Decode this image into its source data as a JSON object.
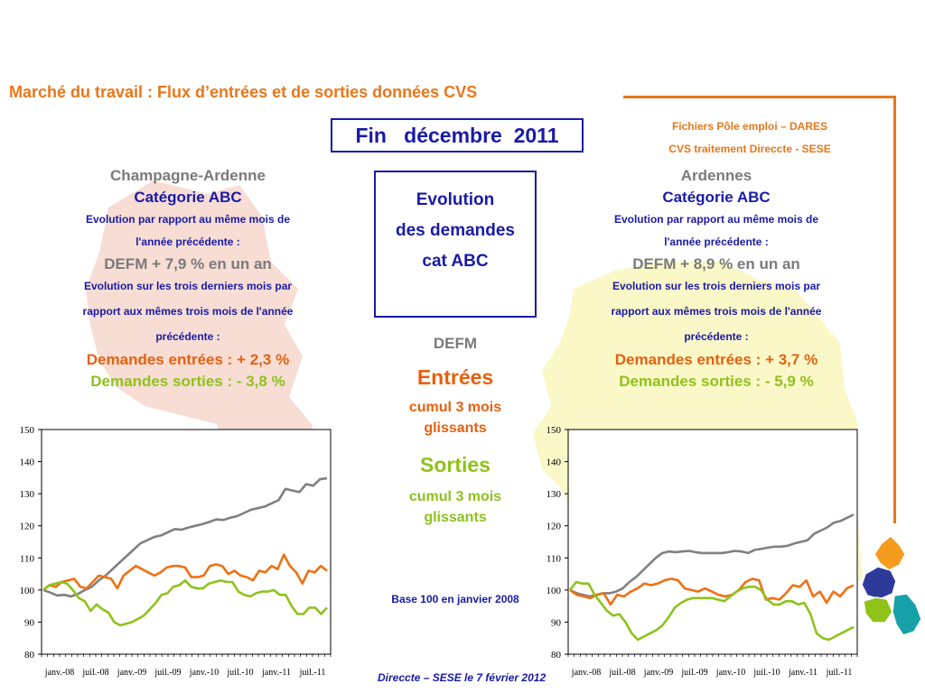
{
  "title": "Marché du travail : Flux d’entrées et de sorties données CVS",
  "period": "Fin   décembre  2011",
  "source": {
    "line1": "Fichiers Pôle emploi – DARES",
    "line2": "CVS traitement Direccte - SESE"
  },
  "center": {
    "evolution_line1": "Evolution",
    "evolution_line2": "des  demandes",
    "evolution_line3": "cat ABC",
    "defm": "DEFM",
    "entrees": "Entrées",
    "entrees_sub1": "cumul 3 mois",
    "entrees_sub2": "glissants",
    "sorties": "Sorties",
    "sorties_sub1": "cumul 3 mois",
    "sorties_sub2": "glissants",
    "base": "Base 100 en janvier 2008"
  },
  "left": {
    "region": "Champagne-Ardenne",
    "category": "Catégorie ABC",
    "evo_same_month_1": "Evolution par rapport au même mois de",
    "evo_same_month_2": "l'année précédente :",
    "defm_line": "DEFM +  7,9 % en un an",
    "evo_three_1": "Evolution sur les trois derniers mois par",
    "evo_three_2": "rapport aux mêmes trois mois de l'année",
    "evo_three_3": "précédente :",
    "entrees_line": "Demandes entrées : +  2,3 %",
    "sorties_line": "Demandes sorties : -  3,8 %"
  },
  "right": {
    "region": "Ardennes",
    "category": "Catégorie ABC",
    "evo_same_month_1": "Evolution par rapport au même mois de",
    "evo_same_month_2": "l'année précédente :",
    "defm_line": "DEFM +  8,9 % en un an",
    "evo_three_1": "Evolution sur les trois derniers mois par",
    "evo_three_2": "rapport aux mêmes trois mois de l'année",
    "evo_three_3": "précédente :",
    "entrees_line": "Demandes entrées : +  3,7 %",
    "sorties_line": "Demandes sorties : -  5,9 %"
  },
  "footer": "Direccte – SESE le 7 février 2012",
  "colors": {
    "accent_orange": "#e8771a",
    "blue": "#1a1aa8",
    "grey_series": "#808080",
    "orange_series": "#f07014",
    "green_series": "#8ec21a",
    "map_left": "#f7ddd4",
    "map_right": "#fbf8c8"
  },
  "chart_data": [
    {
      "type": "line",
      "ylim": [
        80,
        150
      ],
      "yticks": [
        80,
        90,
        100,
        110,
        120,
        130,
        140,
        150
      ],
      "x_tick_labels": [
        "janv.-08",
        "juil.-08",
        "janv.-09",
        "juil.-09",
        "janv.-10",
        "juil.-10",
        "janv.-11",
        "juil.-11"
      ],
      "series": [
        {
          "color": "#808080",
          "values": [
            100,
            99.2,
            98.3,
            98.5,
            98,
            98.8,
            100,
            101,
            103,
            104.5,
            106.5,
            108.5,
            110.5,
            112.5,
            114.5,
            115.5,
            116.5,
            117,
            118,
            119,
            118.8,
            119.5,
            120,
            120.5,
            121.2,
            122,
            121.8,
            122.5,
            123,
            124,
            125,
            125.5,
            126,
            127,
            128,
            131.5,
            131,
            130.5,
            133,
            132.5,
            134.5,
            134.8
          ]
        },
        {
          "color": "#f07014",
          "values": [
            100,
            101.5,
            101,
            102.5,
            103,
            103.5,
            101,
            100.5,
            102.5,
            104.5,
            104,
            103.5,
            100.5,
            104.5,
            106,
            107.5,
            106.5,
            105.5,
            104.5,
            105.5,
            107,
            107.5,
            107.5,
            107,
            104,
            104,
            104.5,
            107.5,
            108,
            107.5,
            105,
            106,
            104.5,
            104,
            103,
            106,
            105.5,
            107.5,
            106.5,
            111,
            107.5,
            105.5,
            102,
            106,
            105.5,
            107.5,
            106
          ]
        },
        {
          "color": "#8ec21a",
          "values": [
            100,
            101.5,
            102,
            102.5,
            102,
            100,
            97.5,
            96.5,
            93.5,
            95.5,
            94,
            93,
            90,
            89,
            89.5,
            90,
            91,
            92,
            94,
            96,
            98.5,
            99,
            101,
            101.5,
            103,
            101,
            100.5,
            100.5,
            102,
            102.5,
            103,
            102.5,
            102.5,
            99.5,
            98.5,
            98,
            99,
            99.5,
            99.5,
            100,
            98.5,
            98.5,
            95,
            92.5,
            92.5,
            94.5,
            94.5,
            92.5,
            94.5
          ]
        }
      ]
    },
    {
      "type": "line",
      "ylim": [
        80,
        150
      ],
      "yticks": [
        80,
        90,
        100,
        110,
        120,
        130,
        140,
        150
      ],
      "x_tick_labels": [
        "janv.-08",
        "juil.-08",
        "janv.-09",
        "juil.-09",
        "janv.-10",
        "juil.-10",
        "janv.-11",
        "juil.-11"
      ],
      "series": [
        {
          "color": "#808080",
          "values": [
            100,
            99,
            98.5,
            98,
            98.5,
            99,
            99,
            99.5,
            100.5,
            102.5,
            104,
            106,
            108,
            110,
            111.5,
            112,
            111.8,
            112,
            112.2,
            111.8,
            111.5,
            111.5,
            111.5,
            111.5,
            111.8,
            112.2,
            112,
            111.5,
            112.5,
            112.8,
            113.2,
            113.5,
            113.5,
            113.8,
            114.5,
            115,
            115.5,
            117.5,
            118.5,
            119.5,
            121,
            121.5,
            122.5,
            123.5
          ]
        },
        {
          "color": "#f07014",
          "values": [
            100,
            98.5,
            98,
            97.5,
            98.5,
            99,
            95.5,
            98.5,
            98,
            99.5,
            100.5,
            102,
            101.5,
            102,
            103,
            103.5,
            103,
            100.5,
            100,
            99.5,
            100.5,
            99.5,
            98.5,
            98,
            98.5,
            100,
            102.5,
            103.5,
            103,
            97,
            97.5,
            97,
            99,
            101.5,
            101,
            103,
            98,
            99.5,
            96,
            99.5,
            98,
            100.5,
            101.5
          ]
        },
        {
          "color": "#8ec21a",
          "values": [
            100,
            102.5,
            102,
            102,
            98.5,
            96,
            93.5,
            92,
            92.5,
            90,
            86.5,
            84.5,
            85.5,
            86.5,
            87.5,
            89,
            91.5,
            94.5,
            96,
            97,
            97.5,
            97.5,
            97.5,
            97.5,
            97,
            96.5,
            98,
            99.5,
            100.5,
            101,
            101,
            100,
            97,
            95.5,
            95.5,
            96.5,
            96.5,
            95.5,
            96,
            92.5,
            86.5,
            85,
            84.5,
            85.5,
            86.5,
            87.5,
            88.5
          ]
        }
      ]
    }
  ]
}
